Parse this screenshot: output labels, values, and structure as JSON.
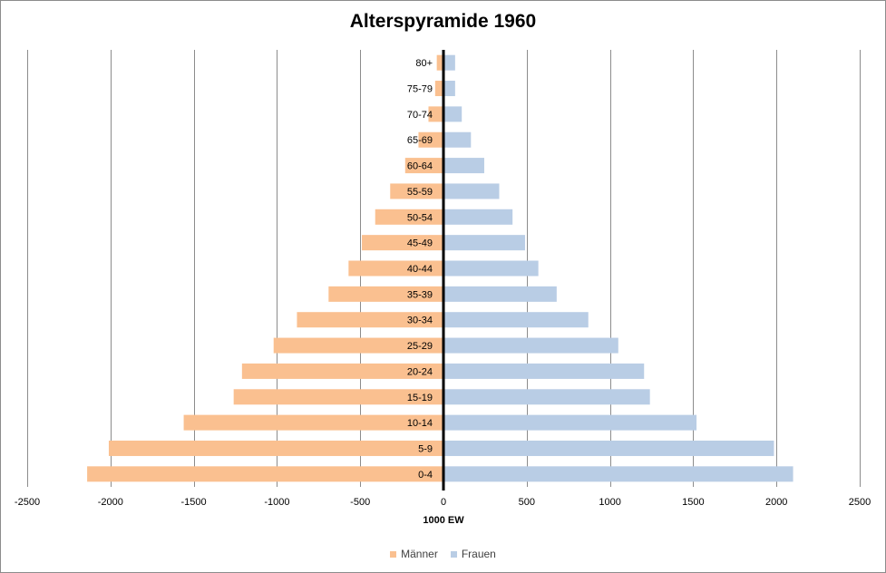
{
  "chart_data": {
    "type": "bar",
    "orientation": "horizontal",
    "title": "Alterspyramide 1960",
    "xlabel": "1000 EW",
    "ylabel": "",
    "xlim": [
      -2500,
      2500
    ],
    "xticks": [
      -2500,
      -2000,
      -1500,
      -1000,
      -500,
      0,
      500,
      1000,
      1500,
      2000,
      2500
    ],
    "grid": true,
    "legend_position": "bottom",
    "categories": [
      "0-4",
      "5-9",
      "10-14",
      "15-19",
      "20-24",
      "25-29",
      "30-34",
      "35-39",
      "40-44",
      "45-49",
      "50-54",
      "55-59",
      "60-64",
      "65-69",
      "70-74",
      "75-79",
      "80+"
    ],
    "series": [
      {
        "name": "Männer",
        "color": "#fac090",
        "values": [
          -2140,
          -2010,
          -1560,
          -1260,
          -1210,
          -1020,
          -880,
          -690,
          -570,
          -490,
          -410,
          -320,
          -230,
          -150,
          -90,
          -50,
          -40
        ]
      },
      {
        "name": "Frauen",
        "color": "#b9cde5",
        "values": [
          2100,
          1985,
          1520,
          1240,
          1205,
          1050,
          870,
          680,
          570,
          490,
          415,
          335,
          245,
          165,
          110,
          70,
          70
        ]
      }
    ]
  }
}
